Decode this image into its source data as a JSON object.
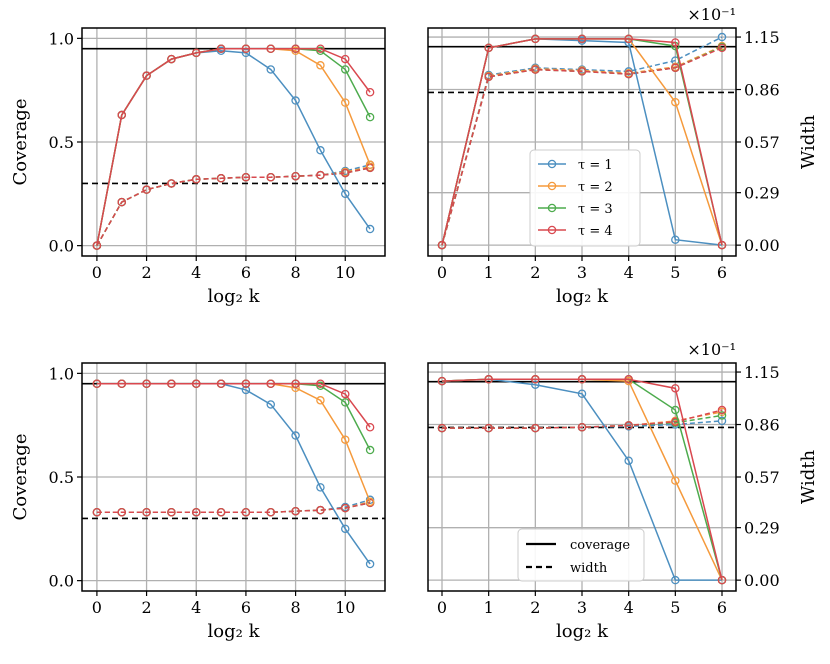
{
  "chart_data": [
    {
      "type": "line",
      "panel": "top-left",
      "xlabel": "log₂ k",
      "ylabel": "Coverage",
      "xlim": [
        -0.6,
        11.6
      ],
      "ylim": [
        -0.05,
        1.05
      ],
      "xticks": [
        0,
        2,
        4,
        6,
        8,
        10
      ],
      "yticks": [
        0.0,
        0.5,
        1.0
      ],
      "ytick_labels": [
        "0.0",
        "0.5",
        "1.0"
      ],
      "grid": true,
      "x": [
        0,
        1,
        2,
        3,
        4,
        5,
        6,
        7,
        8,
        9,
        10,
        11
      ],
      "hlines": [
        {
          "y": 0.95,
          "style": "solid"
        },
        {
          "y": 0.3,
          "style": "dashed"
        }
      ],
      "series": [
        {
          "name": "τ = 1",
          "kind": "coverage",
          "values": [
            0.0,
            0.63,
            0.82,
            0.9,
            0.93,
            0.94,
            0.93,
            0.85,
            0.7,
            0.46,
            0.25,
            0.08
          ]
        },
        {
          "name": "τ = 2",
          "kind": "coverage",
          "values": [
            0.0,
            0.63,
            0.82,
            0.9,
            0.93,
            0.95,
            0.95,
            0.95,
            0.94,
            0.87,
            0.69,
            0.39
          ]
        },
        {
          "name": "τ = 3",
          "kind": "coverage",
          "values": [
            0.0,
            0.63,
            0.82,
            0.9,
            0.93,
            0.95,
            0.95,
            0.95,
            0.95,
            0.94,
            0.85,
            0.62
          ]
        },
        {
          "name": "τ = 4",
          "kind": "coverage",
          "values": [
            0.0,
            0.63,
            0.82,
            0.9,
            0.93,
            0.95,
            0.95,
            0.95,
            0.95,
            0.95,
            0.9,
            0.74
          ]
        },
        {
          "name": "τ = 1",
          "kind": "width",
          "values": [
            0.0,
            0.21,
            0.27,
            0.3,
            0.32,
            0.325,
            0.33,
            0.33,
            0.335,
            0.34,
            0.36,
            0.39
          ]
        },
        {
          "name": "τ = 2",
          "kind": "width",
          "values": [
            0.0,
            0.21,
            0.27,
            0.3,
            0.32,
            0.325,
            0.33,
            0.33,
            0.335,
            0.34,
            0.355,
            0.38
          ]
        },
        {
          "name": "τ = 3",
          "kind": "width",
          "values": [
            0.0,
            0.21,
            0.27,
            0.3,
            0.32,
            0.325,
            0.33,
            0.33,
            0.335,
            0.34,
            0.35,
            0.375
          ]
        },
        {
          "name": "τ = 4",
          "kind": "width",
          "values": [
            0.0,
            0.21,
            0.27,
            0.3,
            0.32,
            0.325,
            0.33,
            0.33,
            0.335,
            0.34,
            0.35,
            0.375
          ]
        }
      ]
    },
    {
      "type": "line",
      "panel": "top-right",
      "xlabel": "log₂ k",
      "ylabel": "Width",
      "multiplier": "×10⁻¹",
      "xlim": [
        -0.3,
        6.3
      ],
      "ylim": [
        -0.06,
        1.2
      ],
      "xticks": [
        0,
        1,
        2,
        3,
        4,
        5,
        6
      ],
      "yticks": [
        0.0,
        0.29,
        0.57,
        0.86,
        1.15
      ],
      "ytick_labels": [
        "0.00",
        "0.29",
        "0.57",
        "0.86",
        "1.15"
      ],
      "grid": true,
      "legend": "center",
      "x": [
        0,
        1,
        2,
        3,
        4,
        5,
        6
      ],
      "hlines": [
        {
          "y": 1.097,
          "style": "solid"
        },
        {
          "y": 0.844,
          "style": "dashed"
        }
      ],
      "series": [
        {
          "name": "τ = 1",
          "kind": "coverage",
          "values": [
            0.0,
            1.09,
            1.14,
            1.13,
            1.12,
            0.03,
            0.0
          ]
        },
        {
          "name": "τ = 2",
          "kind": "coverage",
          "values": [
            0.0,
            1.09,
            1.14,
            1.14,
            1.14,
            0.79,
            0.0
          ]
        },
        {
          "name": "τ = 3",
          "kind": "coverage",
          "values": [
            0.0,
            1.09,
            1.14,
            1.14,
            1.14,
            1.1,
            0.0
          ]
        },
        {
          "name": "τ = 4",
          "kind": "coverage",
          "values": [
            0.0,
            1.09,
            1.14,
            1.14,
            1.14,
            1.12,
            0.0
          ]
        },
        {
          "name": "τ = 1",
          "kind": "width",
          "values": [
            0.0,
            0.94,
            0.98,
            0.97,
            0.96,
            1.02,
            1.15
          ]
        },
        {
          "name": "τ = 2",
          "kind": "width",
          "values": [
            0.0,
            0.935,
            0.975,
            0.965,
            0.95,
            0.985,
            1.1
          ]
        },
        {
          "name": "τ = 3",
          "kind": "width",
          "values": [
            0.0,
            0.93,
            0.97,
            0.96,
            0.945,
            0.98,
            1.095
          ]
        },
        {
          "name": "τ = 4",
          "kind": "width",
          "values": [
            0.0,
            0.93,
            0.97,
            0.96,
            0.945,
            0.98,
            1.09
          ]
        }
      ]
    },
    {
      "type": "line",
      "panel": "bottom-left",
      "xlabel": "log₂ k",
      "ylabel": "Coverage",
      "xlim": [
        -0.6,
        11.6
      ],
      "ylim": [
        -0.05,
        1.05
      ],
      "xticks": [
        0,
        2,
        4,
        6,
        8,
        10
      ],
      "yticks": [
        0.0,
        0.5,
        1.0
      ],
      "ytick_labels": [
        "0.0",
        "0.5",
        "1.0"
      ],
      "grid": true,
      "x": [
        0,
        1,
        2,
        3,
        4,
        5,
        6,
        7,
        8,
        9,
        10,
        11
      ],
      "hlines": [
        {
          "y": 0.95,
          "style": "solid"
        },
        {
          "y": 0.3,
          "style": "dashed"
        }
      ],
      "series": [
        {
          "name": "τ = 1",
          "kind": "coverage",
          "values": [
            0.95,
            0.95,
            0.95,
            0.95,
            0.95,
            0.95,
            0.92,
            0.85,
            0.7,
            0.45,
            0.25,
            0.08
          ]
        },
        {
          "name": "τ = 2",
          "kind": "coverage",
          "values": [
            0.95,
            0.95,
            0.95,
            0.95,
            0.95,
            0.95,
            0.95,
            0.95,
            0.93,
            0.87,
            0.68,
            0.38
          ]
        },
        {
          "name": "τ = 3",
          "kind": "coverage",
          "values": [
            0.95,
            0.95,
            0.95,
            0.95,
            0.95,
            0.95,
            0.95,
            0.95,
            0.95,
            0.94,
            0.86,
            0.63
          ]
        },
        {
          "name": "τ = 4",
          "kind": "coverage",
          "values": [
            0.95,
            0.95,
            0.95,
            0.95,
            0.95,
            0.95,
            0.95,
            0.95,
            0.95,
            0.95,
            0.9,
            0.74
          ]
        },
        {
          "name": "τ = 1",
          "kind": "width",
          "values": [
            0.33,
            0.33,
            0.33,
            0.33,
            0.33,
            0.33,
            0.33,
            0.33,
            0.335,
            0.34,
            0.355,
            0.39
          ]
        },
        {
          "name": "τ = 2",
          "kind": "width",
          "values": [
            0.33,
            0.33,
            0.33,
            0.33,
            0.33,
            0.33,
            0.33,
            0.33,
            0.335,
            0.34,
            0.35,
            0.38
          ]
        },
        {
          "name": "τ = 3",
          "kind": "width",
          "values": [
            0.33,
            0.33,
            0.33,
            0.33,
            0.33,
            0.33,
            0.33,
            0.33,
            0.335,
            0.34,
            0.35,
            0.375
          ]
        },
        {
          "name": "τ = 4",
          "kind": "width",
          "values": [
            0.33,
            0.33,
            0.33,
            0.33,
            0.33,
            0.33,
            0.33,
            0.33,
            0.335,
            0.34,
            0.35,
            0.375
          ]
        }
      ]
    },
    {
      "type": "line",
      "panel": "bottom-right",
      "xlabel": "log₂ k",
      "ylabel": "Width",
      "multiplier": "×10⁻¹",
      "xlim": [
        -0.3,
        6.3
      ],
      "ylim": [
        -0.06,
        1.2
      ],
      "xticks": [
        0,
        1,
        2,
        3,
        4,
        5,
        6
      ],
      "yticks": [
        0.0,
        0.29,
        0.57,
        0.86,
        1.15
      ],
      "ytick_labels": [
        "0.00",
        "0.29",
        "0.57",
        "0.86",
        "1.15"
      ],
      "grid": true,
      "legend": "lower-center",
      "legend_entries": [
        {
          "label": "coverage",
          "style": "solid"
        },
        {
          "label": "width",
          "style": "dashed"
        }
      ],
      "x": [
        0,
        1,
        2,
        3,
        4,
        5,
        6
      ],
      "hlines": [
        {
          "y": 1.097,
          "style": "solid"
        },
        {
          "y": 0.844,
          "style": "dashed"
        }
      ],
      "series": [
        {
          "name": "τ = 1",
          "kind": "coverage",
          "values": [
            1.1,
            1.11,
            1.08,
            1.03,
            0.66,
            0.0,
            0.0
          ]
        },
        {
          "name": "τ = 2",
          "kind": "coverage",
          "values": [
            1.1,
            1.11,
            1.11,
            1.11,
            1.1,
            0.55,
            0.0
          ]
        },
        {
          "name": "τ = 3",
          "kind": "coverage",
          "values": [
            1.1,
            1.11,
            1.11,
            1.11,
            1.11,
            0.94,
            0.0
          ]
        },
        {
          "name": "τ = 4",
          "kind": "coverage",
          "values": [
            1.1,
            1.11,
            1.11,
            1.11,
            1.11,
            1.06,
            0.0
          ]
        },
        {
          "name": "τ = 1",
          "kind": "width",
          "values": [
            0.84,
            0.84,
            0.84,
            0.845,
            0.85,
            0.86,
            0.88
          ]
        },
        {
          "name": "τ = 2",
          "kind": "width",
          "values": [
            0.84,
            0.84,
            0.84,
            0.845,
            0.855,
            0.88,
            0.93
          ]
        },
        {
          "name": "τ = 3",
          "kind": "width",
          "values": [
            0.84,
            0.84,
            0.84,
            0.845,
            0.855,
            0.87,
            0.91
          ]
        },
        {
          "name": "τ = 4",
          "kind": "width",
          "values": [
            0.84,
            0.84,
            0.84,
            0.845,
            0.855,
            0.875,
            0.94
          ]
        }
      ]
    }
  ],
  "legends": {
    "tau": [
      "τ = 1",
      "τ = 2",
      "τ = 3",
      "τ = 4"
    ],
    "style": [
      "coverage",
      "width"
    ]
  },
  "colors": {
    "tau1": "#4c8fc0",
    "tau2": "#f59a3c",
    "tau3": "#4dab4d",
    "tau4": "#d9484f",
    "grid": "#b0b0b0",
    "axis": "#000000"
  }
}
